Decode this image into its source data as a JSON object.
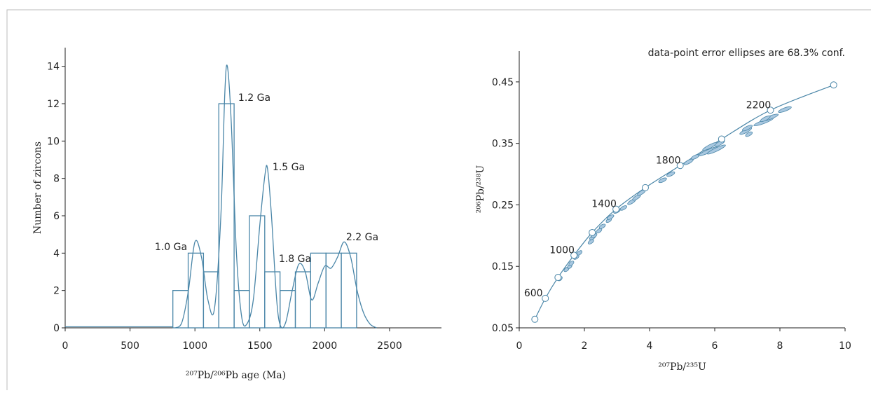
{
  "chart_data": [
    {
      "type": "histogram",
      "x_label": "²⁰⁷Pb/²⁰⁶Pb age (Ma)",
      "y_label": "Number of zircons",
      "color": "#4a86a8",
      "bins": [
        830,
        948,
        1066,
        1184,
        1302,
        1420,
        1538,
        1656,
        1774,
        1892,
        2010,
        2128,
        2246
      ],
      "counts": [
        2,
        4,
        3,
        12,
        2,
        6,
        3,
        2,
        3,
        4,
        4,
        4
      ],
      "kde": {
        "x": [
          850,
          900,
          950,
          1000,
          1050,
          1100,
          1150,
          1200,
          1230,
          1250,
          1280,
          1320,
          1360,
          1400,
          1450,
          1500,
          1540,
          1560,
          1590,
          1630,
          1660,
          1700,
          1750,
          1800,
          1850,
          1900,
          1950,
          2000,
          2050,
          2100,
          2150,
          2200,
          2250,
          2300,
          2350,
          2400
        ],
        "values": [
          0,
          0.3,
          2.0,
          4.6,
          3.8,
          1.5,
          1.0,
          6,
          12.5,
          14,
          11,
          4,
          0.6,
          0.2,
          1.5,
          5.5,
          8.2,
          8.5,
          6,
          1.5,
          0.1,
          0.3,
          2.0,
          3.4,
          3.0,
          1.5,
          2.4,
          3.3,
          3.2,
          3.8,
          4.6,
          3.8,
          2.0,
          0.8,
          0.2,
          0
        ]
      },
      "annotations": [
        "1.0 Ga",
        "1.2 Ga",
        "1.5 Ga",
        "1.8 Ga",
        "2.2 Ga"
      ],
      "xlim": [
        0,
        2900
      ],
      "xticks": [
        0,
        500,
        1000,
        1500,
        2000,
        2500
      ],
      "ylim": [
        0,
        15
      ],
      "yticks": [
        0,
        2,
        4,
        6,
        8,
        10,
        12,
        14
      ]
    },
    {
      "type": "scatter",
      "note": "data-point error ellipses are 68.3% conf.",
      "x_label": "²⁰⁷Pb/²³⁵U",
      "y_label": "²⁰⁶Pb/²³⁸U",
      "color": "#4a86a8",
      "fill": "#a9c8e0",
      "x": [
        1.25,
        1.45,
        1.55,
        1.6,
        1.75,
        1.85,
        2.2,
        2.25,
        2.3,
        2.45,
        2.55,
        2.75,
        2.8,
        3.0,
        3.2,
        3.45,
        3.6,
        3.75,
        4.4,
        4.65,
        5.2,
        5.4,
        5.8,
        6.05,
        5.85,
        6.15,
        6.95,
        7.0,
        7.05,
        7.5,
        7.7,
        8.15,
        7.55
      ],
      "y": [
        0.13,
        0.145,
        0.15,
        0.155,
        0.165,
        0.172,
        0.19,
        0.197,
        0.2,
        0.208,
        0.215,
        0.225,
        0.23,
        0.24,
        0.245,
        0.255,
        0.262,
        0.27,
        0.29,
        0.3,
        0.32,
        0.328,
        0.337,
        0.34,
        0.345,
        0.35,
        0.37,
        0.375,
        0.365,
        0.385,
        0.392,
        0.405,
        0.39
      ],
      "x_err": [
        0.06,
        0.07,
        0.06,
        0.07,
        0.08,
        0.07,
        0.08,
        0.09,
        0.08,
        0.08,
        0.09,
        0.08,
        0.1,
        0.1,
        0.1,
        0.12,
        0.12,
        0.12,
        0.12,
        0.12,
        0.14,
        0.12,
        0.3,
        0.28,
        0.22,
        0.15,
        0.18,
        0.15,
        0.1,
        0.3,
        0.25,
        0.2,
        0.15
      ],
      "y_err": [
        0.003,
        0.003,
        0.003,
        0.003,
        0.003,
        0.003,
        0.003,
        0.003,
        0.003,
        0.003,
        0.003,
        0.003,
        0.003,
        0.003,
        0.003,
        0.004,
        0.004,
        0.004,
        0.003,
        0.003,
        0.004,
        0.003,
        0.007,
        0.007,
        0.006,
        0.004,
        0.005,
        0.004,
        0.003,
        0.006,
        0.005,
        0.004,
        0.004
      ],
      "concordia": {
        "x": [
          0.48,
          0.8,
          1.19,
          1.68,
          2.24,
          2.97,
          3.87,
          4.94,
          6.21,
          7.71,
          9.65
        ],
        "y": [
          0.064,
          0.098,
          0.132,
          0.168,
          0.205,
          0.243,
          0.278,
          0.314,
          0.357,
          0.404,
          0.445
        ],
        "ages": [
          null,
          600,
          null,
          1000,
          null,
          1400,
          null,
          1800,
          null,
          2200,
          null
        ]
      },
      "xlim": [
        0,
        10
      ],
      "xticks": [
        0,
        2,
        4,
        6,
        8,
        10
      ],
      "ylim": [
        0.05,
        0.5
      ],
      "yticks": [
        0.05,
        0.15,
        0.25,
        0.35,
        0.45
      ]
    }
  ]
}
